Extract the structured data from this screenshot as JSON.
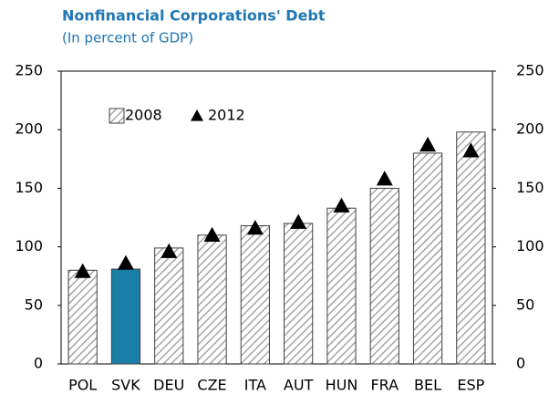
{
  "chart_data": {
    "type": "bar",
    "title": "Nonfinancial Corporations' Debt",
    "subtitle": "(In percent of GDP)",
    "categories": [
      "POL",
      "SVK",
      "DEU",
      "CZE",
      "ITA",
      "AUT",
      "HUN",
      "FRA",
      "BEL",
      "ESP"
    ],
    "series": [
      {
        "name": "2008",
        "color": "#a6a6a6",
        "values": [
          80,
          81,
          99,
          110,
          118,
          120,
          133,
          150,
          180,
          198
        ],
        "highlight_index": 1,
        "highlight_color": "#1a7fa8"
      },
      {
        "name": "2012",
        "color": "#000000",
        "marker": "triangle",
        "values": [
          79,
          86,
          96,
          110,
          116,
          121,
          135,
          158,
          187,
          182
        ]
      }
    ],
    "ylim": [
      0,
      250
    ],
    "yticks": [
      0,
      50,
      100,
      150,
      200,
      250
    ],
    "y2lim": [
      0,
      250
    ],
    "y2ticks": [
      0,
      50,
      100,
      150,
      200,
      250
    ],
    "legend": "upper left"
  }
}
